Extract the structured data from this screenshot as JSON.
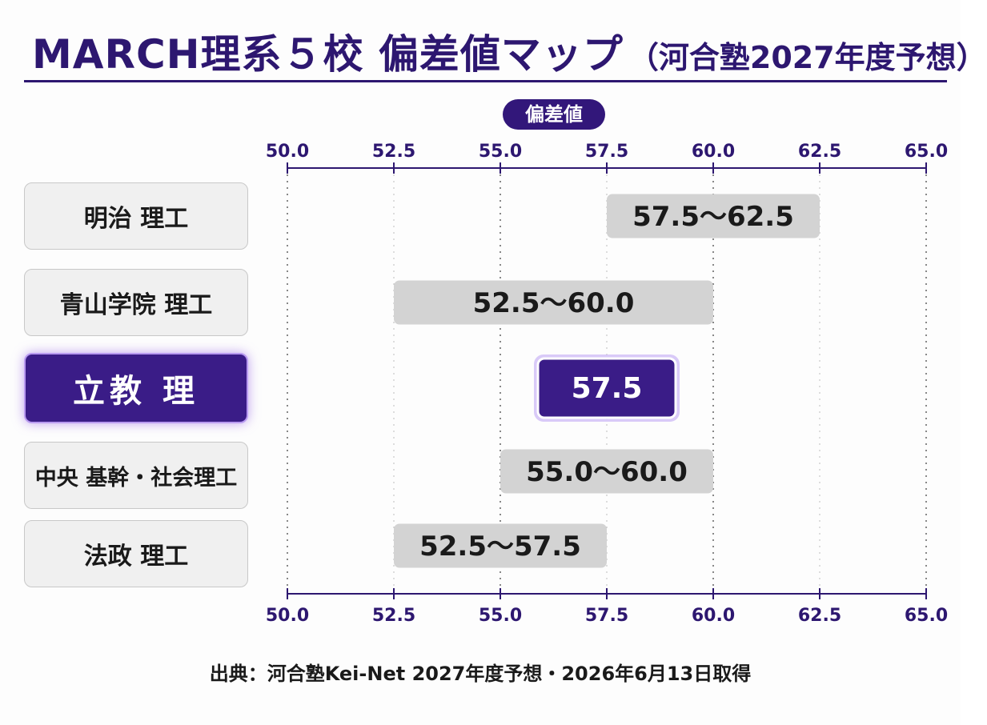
{
  "title": {
    "main": "MARCH理系５校 偏差値マップ",
    "sub": "（河合塾2027年度予想）"
  },
  "axis_pill": "偏差値",
  "source": "出典：河合塾Kei-Net 2027年度予想・2026年6月13日取得",
  "colors": {
    "accent": "#2d1770",
    "bar": "#d3d3d3",
    "highlight": "#3a1c87",
    "highlight_border": "#c9b3f5"
  },
  "chart_data": {
    "type": "bar",
    "orientation": "horizontal-range",
    "title": "MARCH理系５校 偏差値マップ",
    "xlabel": "偏差値",
    "xlim": [
      50.0,
      65.0
    ],
    "ticks": [
      "50.0",
      "52.5",
      "55.0",
      "57.5",
      "60.0",
      "62.5",
      "65.0"
    ],
    "tick_values": [
      50.0,
      52.5,
      55.0,
      57.5,
      60.0,
      62.5,
      65.0
    ],
    "grid": true,
    "categories": [
      "明治 理工",
      "青山学院 理工",
      "立教 理",
      "中央 基幹・社会理工",
      "法政 理工"
    ],
    "ranges": [
      {
        "low": 57.5,
        "high": 62.5,
        "label": "57.5～62.5"
      },
      {
        "low": 52.5,
        "high": 60.0,
        "label": "52.5～60.0"
      },
      {
        "low": 57.5,
        "high": 57.5,
        "label": "57.5"
      },
      {
        "low": 55.0,
        "high": 60.0,
        "label": "55.0～60.0"
      },
      {
        "low": 52.5,
        "high": 57.5,
        "label": "52.5～57.5"
      }
    ],
    "highlight_index": 2
  }
}
